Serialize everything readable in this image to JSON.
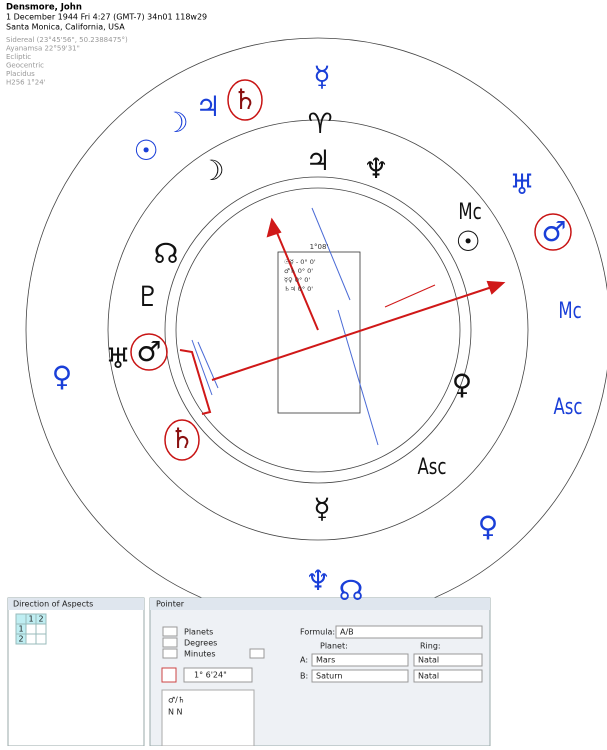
{
  "header": {
    "name": "Densmore, John",
    "line1": "1 December 1944  Fri   4:27 (GMT-7) 34n01  118w29",
    "line2": "Santa Monica, California, USA",
    "settings": [
      "Sidereal (23°45'56\", 50.2388475°)",
      "Ayanamsa 22°59'31\"",
      "Ecliptic",
      "Geocentric",
      "Placidus",
      "H256  1°24'"
    ]
  },
  "wheel": {
    "outer_glyphs": [
      {
        "text": "☉",
        "color": "#1a3fd8"
      },
      {
        "text": "☽",
        "color": "#1a3fd8"
      },
      {
        "text": "♃",
        "color": "#1a3fd8"
      },
      {
        "text": "♄",
        "color": "#8a1010"
      },
      {
        "text": "☿",
        "color": "#1a3fd8"
      },
      {
        "text": "♅",
        "color": "#1a3fd8"
      },
      {
        "text": "♂",
        "color": "#1a3fd8"
      },
      {
        "text": "Mc",
        "color": "#1a3fd8"
      },
      {
        "text": "Asc",
        "color": "#1a3fd8"
      },
      {
        "text": "♀",
        "color": "#1a3fd8"
      },
      {
        "text": "♆",
        "color": "#1a3fd8"
      },
      {
        "text": "☊",
        "color": "#1a3fd8"
      },
      {
        "text": "♀",
        "color": "#1a3fd8"
      }
    ],
    "inner_glyphs": [
      {
        "text": "♈",
        "color": "#111"
      },
      {
        "text": "♃",
        "color": "#111"
      },
      {
        "text": "♆",
        "color": "#111"
      },
      {
        "text": "Mc",
        "color": "#111"
      },
      {
        "text": "☉",
        "color": "#111"
      },
      {
        "text": "☽",
        "color": "#111"
      },
      {
        "text": "☊",
        "color": "#111"
      },
      {
        "text": "♇",
        "color": "#111"
      },
      {
        "text": "♅",
        "color": "#111"
      },
      {
        "text": "♂",
        "color": "#111"
      },
      {
        "text": "♄",
        "color": "#8a1010"
      },
      {
        "text": "♀",
        "color": "#111"
      },
      {
        "text": "Asc",
        "color": "#111"
      },
      {
        "text": "☿",
        "color": "#111"
      }
    ],
    "center_box": {
      "degree": "1°08'",
      "rows": [
        "☉☿  - 0° 0'",
        "♂♄   0° 0'",
        "☿♀   0° 0'",
        "♄♃   0° 0'"
      ]
    }
  },
  "aspects_panel": {
    "title": "Direction of Aspects",
    "cells": [
      "1",
      "2",
      "1",
      "2"
    ]
  },
  "pointer_panel": {
    "title": "Pointer",
    "rows": [
      "Planets",
      "Degrees",
      "Minutes"
    ],
    "formula_label": "Formula:",
    "formula": "A/B",
    "planet_label": "Planet:",
    "ring_label": "Ring:",
    "a_label": "A:",
    "a_planet": "Mars",
    "a_ring": "Natal",
    "b_label": "B:",
    "b_planet": "Saturn",
    "b_ring": "Natal",
    "offset": "1° 6'24\"",
    "pair": "♂/♄",
    "pair_rings": "N  N"
  }
}
